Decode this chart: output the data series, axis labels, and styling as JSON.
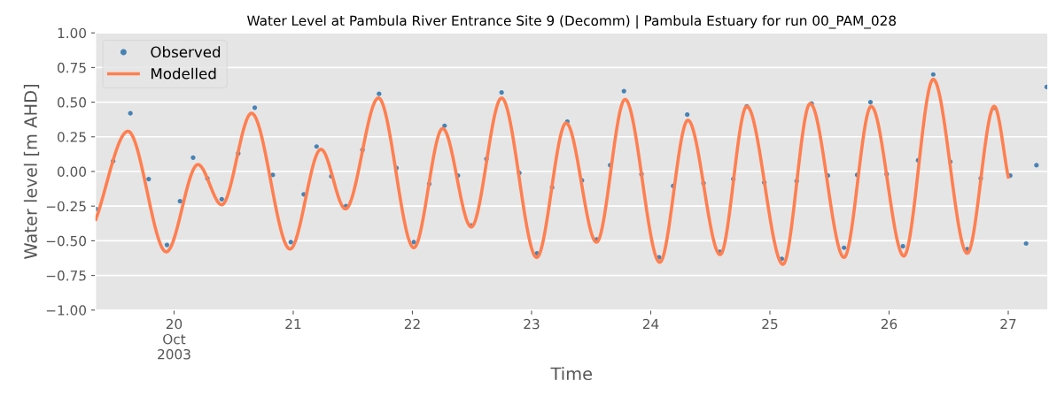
{
  "chart_data": {
    "type": "line",
    "title": "Water Level at Pambula River Entrance Site 9 (Decomm) | Pambula Estuary for run 00_PAM_028",
    "xlabel": "Time",
    "ylabel": "Water level [m AHD]",
    "xlim": [
      "2003-10-19T08:10",
      "2003-10-27T08:00"
    ],
    "xticks": [
      {
        "value": "2003-10-20",
        "label": "20\nOct\n2003"
      },
      {
        "value": "2003-10-21",
        "label": "21"
      },
      {
        "value": "2003-10-22",
        "label": "22"
      },
      {
        "value": "2003-10-23",
        "label": "23"
      },
      {
        "value": "2003-10-24",
        "label": "24"
      },
      {
        "value": "2003-10-25",
        "label": "25"
      },
      {
        "value": "2003-10-26",
        "label": "26"
      },
      {
        "value": "2003-10-27",
        "label": "27"
      }
    ],
    "ylim": [
      -1.0,
      1.0
    ],
    "yticks": [
      {
        "value": -1.0,
        "label": "−1.00"
      },
      {
        "value": -0.75,
        "label": "−0.75"
      },
      {
        "value": -0.5,
        "label": "−0.50"
      },
      {
        "value": -0.25,
        "label": "−0.25"
      },
      {
        "value": 0.0,
        "label": "0.00"
      },
      {
        "value": 0.25,
        "label": "0.25"
      },
      {
        "value": 0.5,
        "label": "0.50"
      },
      {
        "value": 0.75,
        "label": "0.75"
      },
      {
        "value": 1.0,
        "label": "1.00"
      }
    ],
    "grid": "y",
    "legend": "top left",
    "series": [
      {
        "name": "Observed",
        "type": "scatter",
        "marker": "circle",
        "color": "#4682b4",
        "x": [
          "2003-10-19T08:15",
          "2003-10-19T11:43",
          "2003-10-19T15:12",
          "2003-10-19T18:53",
          "2003-10-19T22:34",
          "2003-10-20T01:12",
          "2003-10-20T03:50",
          "2003-10-20T06:43",
          "2003-10-20T09:36",
          "2003-10-20T12:55",
          "2003-10-20T16:15",
          "2003-10-20T19:53",
          "2003-10-20T23:31",
          "2003-10-21T02:07",
          "2003-10-21T04:42",
          "2003-10-21T07:40",
          "2003-10-21T10:38",
          "2003-10-21T13:57",
          "2003-10-21T17:17",
          "2003-10-21T20:47",
          "2003-10-22T00:17",
          "2003-10-22T03:23",
          "2003-10-22T06:29",
          "2003-10-22T09:10",
          "2003-10-22T11:51",
          "2003-10-22T14:55",
          "2003-10-22T17:58",
          "2003-10-22T21:32",
          "2003-10-23T01:05",
          "2003-10-23T04:08",
          "2003-10-23T07:12",
          "2003-10-23T10:08",
          "2003-10-23T13:05",
          "2003-10-23T15:50",
          "2003-10-23T18:36",
          "2003-10-23T22:08",
          "2003-10-24T01:41",
          "2003-10-24T04:31",
          "2003-10-24T07:21",
          "2003-10-24T10:38",
          "2003-10-24T13:55",
          "2003-10-24T16:38",
          "2003-10-24T19:21",
          "2003-10-24T22:52",
          "2003-10-25T02:24",
          "2003-10-25T05:24",
          "2003-10-25T08:24",
          "2003-10-25T11:40",
          "2003-10-25T14:56",
          "2003-10-25T17:35",
          "2003-10-25T20:15",
          "2003-10-25T23:31",
          "2003-10-26T02:47",
          "2003-10-26T05:51",
          "2003-10-26T08:54",
          "2003-10-26T12:20",
          "2003-10-26T15:45",
          "2003-10-26T18:28",
          "2003-10-26T21:11",
          "2003-10-27T00:24",
          "2003-10-27T03:36",
          "2003-10-27T05:41",
          "2003-10-27T07:45"
        ],
        "values": [
          -0.27,
          0.075,
          0.42,
          -0.055,
          -0.53,
          -0.215,
          0.1,
          -0.05,
          -0.2,
          0.13,
          0.46,
          -0.025,
          -0.51,
          -0.165,
          0.18,
          -0.035,
          -0.25,
          0.155,
          0.56,
          0.025,
          -0.51,
          -0.09,
          0.33,
          -0.03,
          -0.39,
          0.09,
          0.57,
          -0.01,
          -0.59,
          -0.115,
          0.36,
          -0.065,
          -0.49,
          0.045,
          0.58,
          -0.02,
          -0.62,
          -0.105,
          0.41,
          -0.085,
          -0.58,
          -0.055,
          0.47,
          -0.08,
          -0.63,
          -0.07,
          0.49,
          -0.03,
          -0.55,
          -0.025,
          0.5,
          -0.02,
          -0.54,
          0.08,
          0.7,
          0.07,
          -0.56,
          -0.05,
          0.46,
          -0.03,
          -0.52,
          0.045,
          0.61
        ]
      },
      {
        "name": "Modelled",
        "marker": "none",
        "line_style": "solid",
        "color": "#ff7f50",
        "x": [
          "2003-10-19T08:15",
          "2003-10-19T14:43",
          "2003-10-19T22:26",
          "2003-10-20T04:48",
          "2003-10-20T09:36",
          "2003-10-20T15:36",
          "2003-10-20T23:21",
          "2003-10-21T05:35",
          "2003-10-21T10:31",
          "2003-10-21T17:10",
          "2003-10-22T00:17",
          "2003-10-22T06:06",
          "2003-10-22T11:51",
          "2003-10-22T17:58",
          "2003-10-23T01:02",
          "2003-10-23T06:58",
          "2003-10-23T13:05",
          "2003-10-23T18:50",
          "2003-10-24T01:49",
          "2003-10-24T07:29",
          "2003-10-24T13:59",
          "2003-10-24T19:21",
          "2003-10-25T02:38",
          "2003-10-25T08:07",
          "2003-10-25T14:56",
          "2003-10-25T20:24",
          "2003-10-26T02:58",
          "2003-10-26T08:54",
          "2003-10-26T15:45",
          "2003-10-26T21:11",
          "2003-10-27T00:00"
        ],
        "values": [
          -0.345,
          0.29,
          -0.58,
          0.05,
          -0.24,
          0.42,
          -0.56,
          0.16,
          -0.27,
          0.53,
          -0.55,
          0.31,
          -0.4,
          0.53,
          -0.62,
          0.35,
          -0.51,
          0.52,
          -0.655,
          0.37,
          -0.6,
          0.47,
          -0.67,
          0.49,
          -0.62,
          0.47,
          -0.61,
          0.665,
          -0.59,
          0.47,
          -0.04
        ]
      }
    ]
  }
}
